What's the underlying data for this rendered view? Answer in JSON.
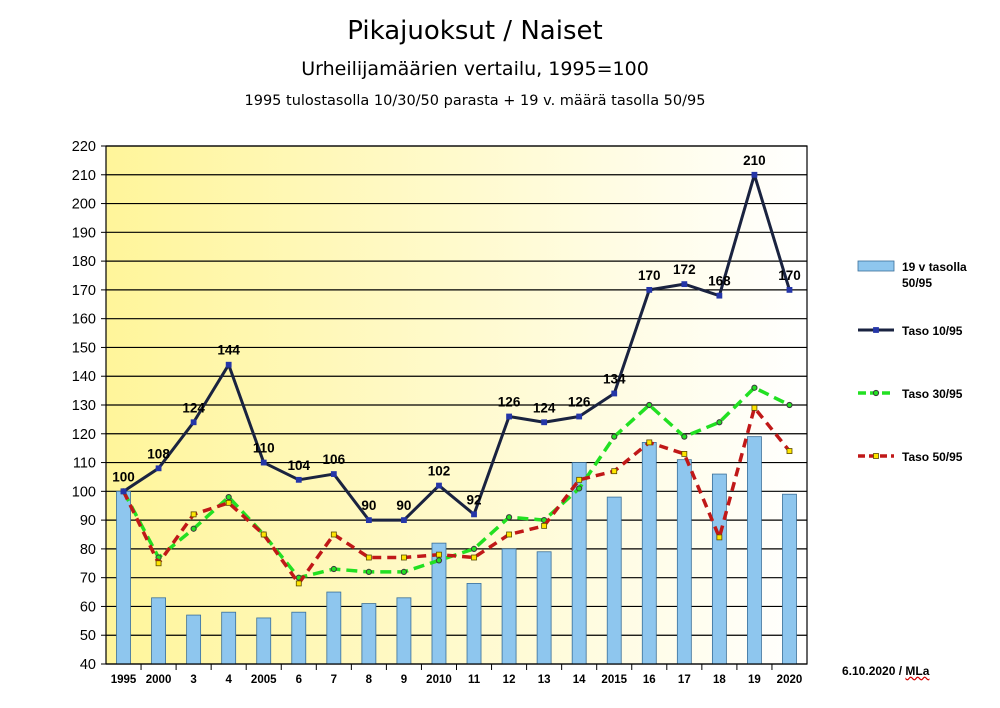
{
  "title": "Pikajuoksut / Naiset",
  "subtitle": "Urheilijamäärien vertailu, 1995=100",
  "subtitle2": "1995 tulostasolla 10/30/50 parasta + 19 v. määrä tasolla 50/95",
  "footer": {
    "date": "6.10.2020 / ",
    "author": "MLa"
  },
  "colors": {
    "bar": "#8ec6ee",
    "bar_border": "#3a6f99",
    "taso10": "#1a2340",
    "taso10_marker": "#2536a8",
    "taso30": "#22e022",
    "taso50": "#c01818",
    "taso50_marker": "#ffe600",
    "bg_left": "#fff59a",
    "bg_right": "#ffffff"
  },
  "chart_data": {
    "type": "bar+line",
    "categories": [
      "1995",
      "2000",
      "3",
      "4",
      "2005",
      "6",
      "7",
      "8",
      "9",
      "2010",
      "11",
      "12",
      "13",
      "14",
      "2015",
      "16",
      "17",
      "18",
      "19",
      "2020"
    ],
    "ylim": [
      40,
      220
    ],
    "yticks": [
      40,
      50,
      60,
      70,
      80,
      90,
      100,
      110,
      120,
      130,
      140,
      150,
      160,
      170,
      180,
      190,
      200,
      210,
      220
    ],
    "grid": true,
    "legend_position": "right",
    "bars": {
      "name": "19 v tasolla 50/95",
      "values": [
        100,
        63,
        57,
        58,
        56,
        58,
        65,
        61,
        63,
        82,
        68,
        80,
        79,
        110,
        98,
        117,
        111,
        106,
        119,
        99
      ]
    },
    "series": [
      {
        "name": "Taso 10/95",
        "style": "solid",
        "values": [
          100,
          108,
          124,
          144,
          110,
          104,
          106,
          90,
          90,
          102,
          92,
          126,
          124,
          126,
          134,
          170,
          172,
          168,
          210,
          170
        ],
        "labels": [
          "100",
          "108",
          "124",
          "144",
          "110",
          "104",
          "106",
          "90",
          "90",
          "102",
          "92",
          "126",
          "124",
          "126",
          "134",
          "170",
          "172",
          "168",
          "210",
          "170"
        ]
      },
      {
        "name": "Taso 30/95",
        "style": "dashed",
        "values": [
          100,
          77,
          87,
          98,
          85,
          70,
          73,
          72,
          72,
          76,
          80,
          91,
          90,
          101,
          119,
          130,
          119,
          124,
          136,
          130
        ]
      },
      {
        "name": "Taso 50/95",
        "style": "dashed",
        "values": [
          100,
          75,
          92,
          96,
          85,
          68,
          85,
          77,
          77,
          78,
          77,
          85,
          88,
          104,
          107,
          117,
          113,
          84,
          129,
          114
        ]
      }
    ]
  }
}
